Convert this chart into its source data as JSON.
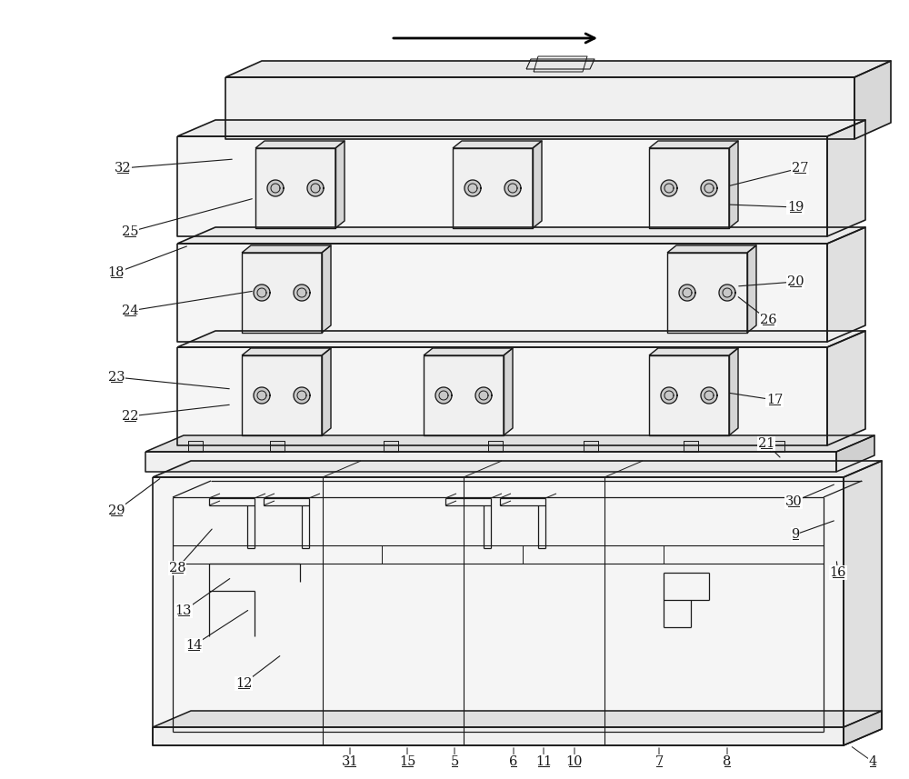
{
  "bg_color": "#ffffff",
  "line_color": "#1a1a1a",
  "figsize": [
    10.0,
    8.57
  ],
  "dpi": 100
}
